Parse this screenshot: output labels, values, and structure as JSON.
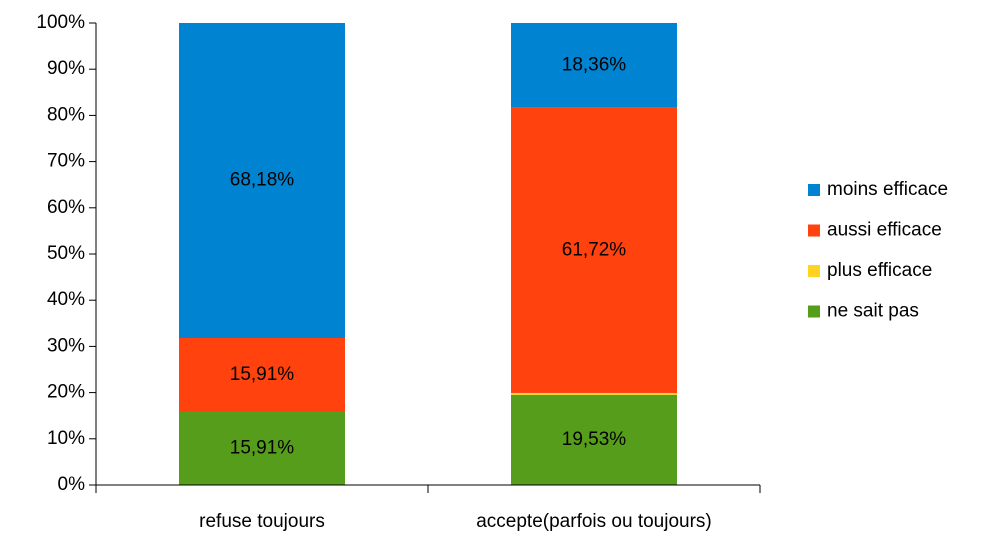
{
  "chart_data": {
    "type": "stacked_bar",
    "categories": [
      "refuse toujours",
      "accepte(parfois ou toujours)"
    ],
    "series": [
      {
        "name": "ne sait pas",
        "color": "#579d1c",
        "values": [
          15.91,
          19.53
        ],
        "value_labels": [
          "15,91%",
          "19,53%"
        ]
      },
      {
        "name": "plus efficace",
        "color": "#ffd320",
        "values": [
          0,
          0.39
        ]
      },
      {
        "name": "aussi efficace",
        "color": "#ff420e",
        "values": [
          15.91,
          61.72
        ],
        "value_labels": [
          "15,91%",
          "61,72%"
        ]
      },
      {
        "name": "moins efficace",
        "color": "#0084d1",
        "values": [
          68.18,
          18.36
        ],
        "value_labels": [
          "68,18%",
          "18,36%"
        ]
      }
    ],
    "ylim": [
      0,
      100
    ],
    "yticks": [
      {
        "value": 0,
        "label": "0%"
      },
      {
        "value": 10,
        "label": "10%"
      },
      {
        "value": 20,
        "label": "20%"
      },
      {
        "value": 30,
        "label": "30%"
      },
      {
        "value": 40,
        "label": "40%"
      },
      {
        "value": 50,
        "label": "50%"
      },
      {
        "value": 60,
        "label": "60%"
      },
      {
        "value": 70,
        "label": "70%"
      },
      {
        "value": 80,
        "label": "80%"
      },
      {
        "value": 90,
        "label": "90%"
      },
      {
        "value": 100,
        "label": "100%"
      }
    ],
    "grid": false,
    "legend": "right"
  }
}
